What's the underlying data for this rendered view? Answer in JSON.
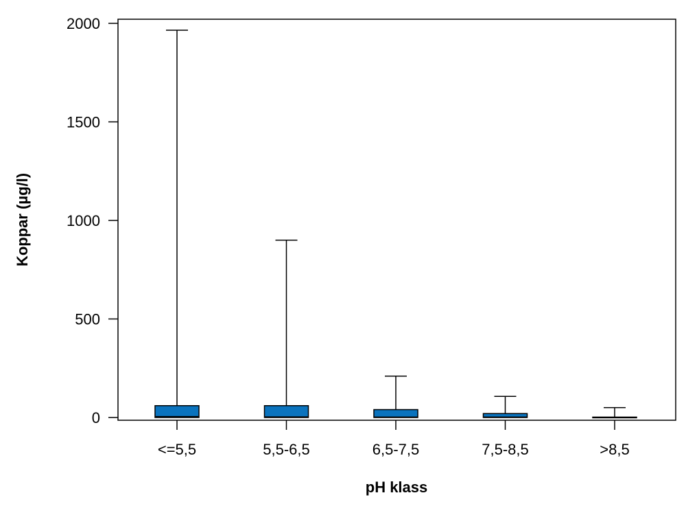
{
  "chart_data": {
    "type": "box",
    "xlabel": "pH klass",
    "ylabel": "Koppar (µg/l)",
    "ylim": [
      -20,
      2010
    ],
    "yticks": [
      0,
      500,
      1000,
      1500,
      2000
    ],
    "yticklabels": [
      "0",
      "500",
      "1000",
      "1500",
      "2000"
    ],
    "categories": [
      "<=5,5",
      "5,5-6,5",
      "6,5-7,5",
      "7,5-8,5",
      ">8,5"
    ],
    "boxes": [
      {
        "category": "<=5,5",
        "min": 0,
        "q1": 0,
        "median": 5,
        "q3": 60,
        "max": 1965
      },
      {
        "category": "5,5-6,5",
        "min": 0,
        "q1": 0,
        "median": 3,
        "q3": 60,
        "max": 900
      },
      {
        "category": "6,5-7,5",
        "min": 0,
        "q1": 0,
        "median": 2,
        "q3": 40,
        "max": 210
      },
      {
        "category": "7,5-8,5",
        "min": 0,
        "q1": 0,
        "median": 2,
        "q3": 20,
        "max": 107
      },
      {
        "category": ">8,5",
        "min": 0,
        "q1": 0,
        "median": 0,
        "q3": 2,
        "max": 50
      }
    ],
    "box_color": "#0a73be",
    "grid": false,
    "legend": "none"
  }
}
